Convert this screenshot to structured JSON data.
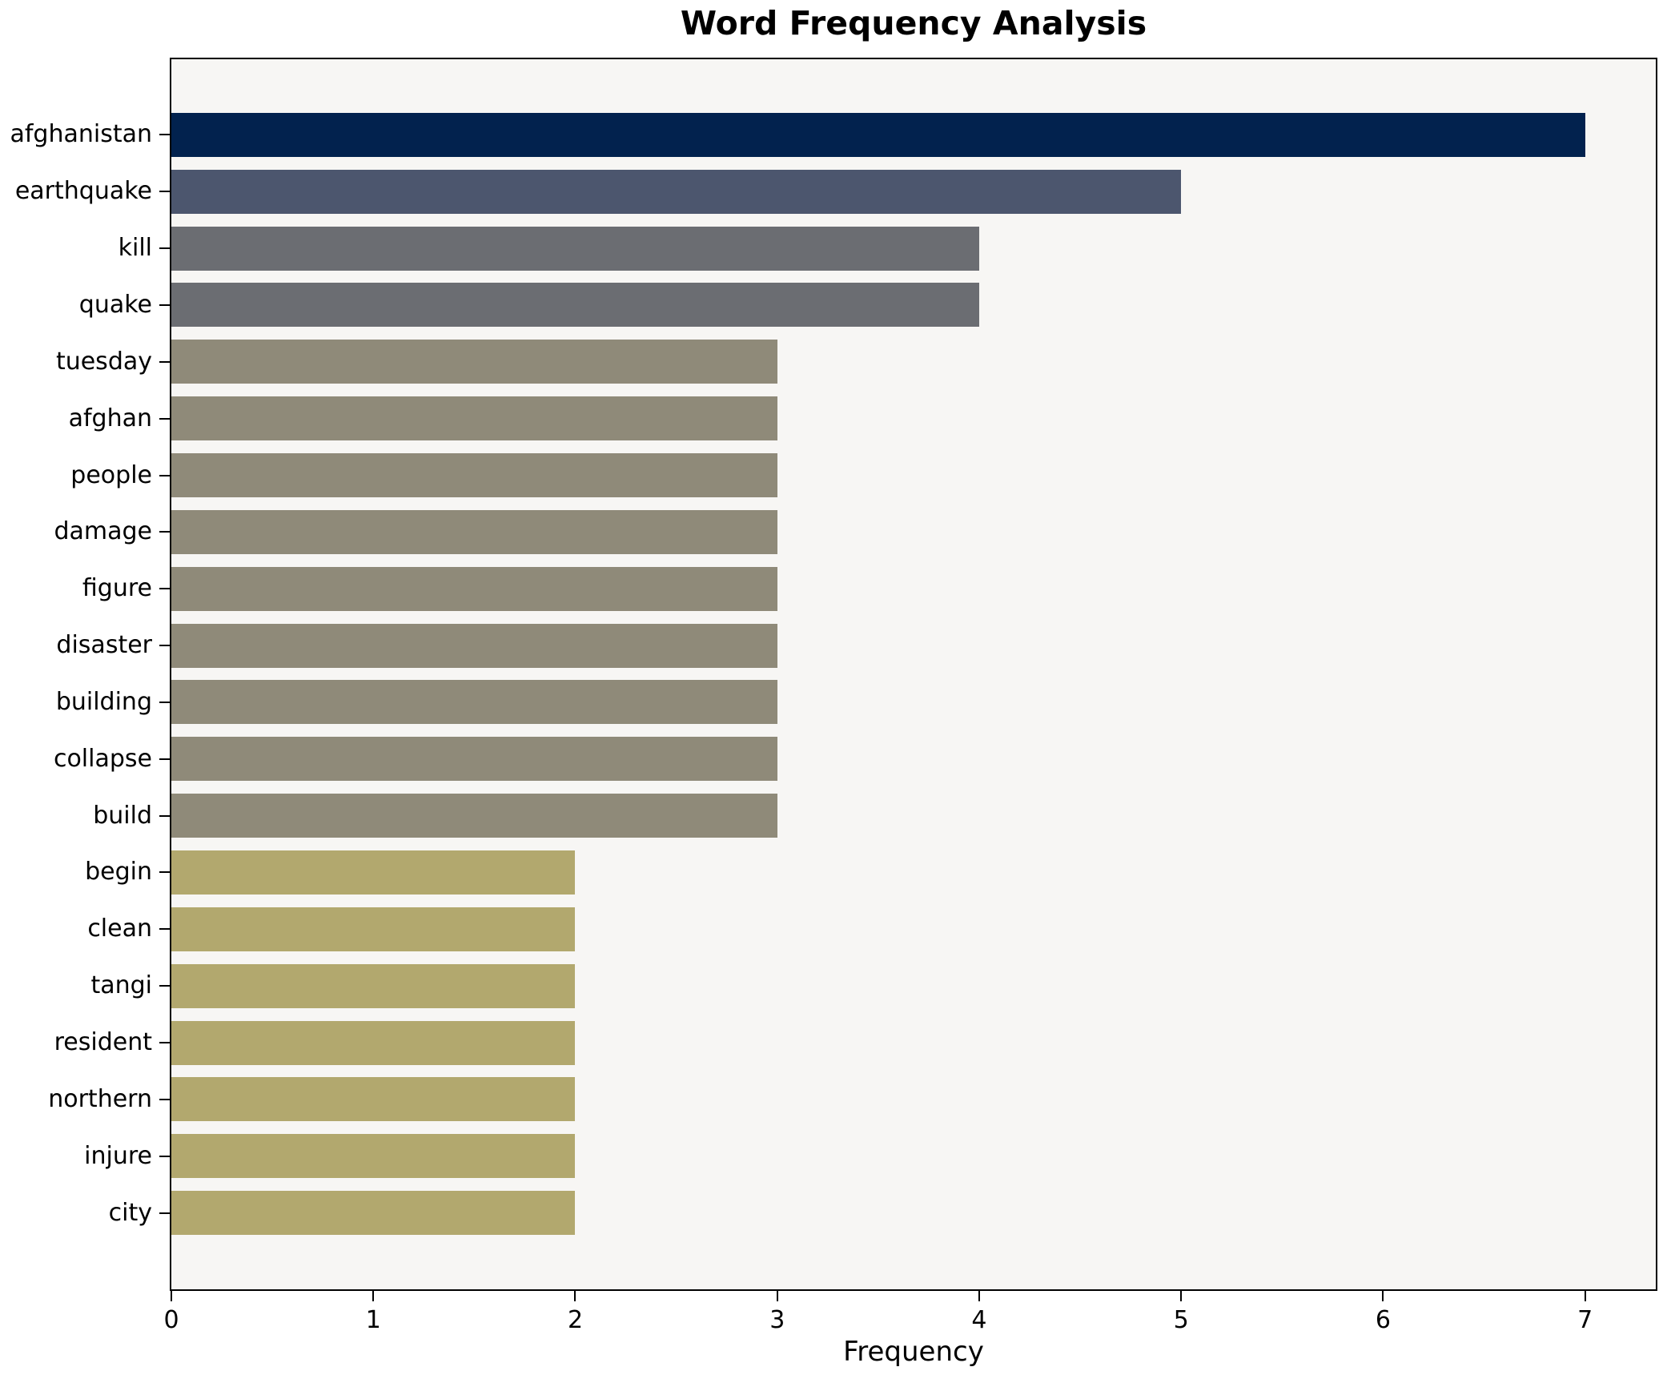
{
  "figure": {
    "background": "#ffffff"
  },
  "chart_data": {
    "type": "bar",
    "orientation": "horizontal",
    "title": "Word Frequency Analysis",
    "xlabel": "Frequency",
    "ylabel": "",
    "grid": false,
    "legend_position": "none",
    "xlim": [
      0,
      7.35
    ],
    "xticks": [
      0,
      1,
      2,
      3,
      4,
      5,
      6,
      7
    ],
    "categories": [
      "afghanistan",
      "earthquake",
      "kill",
      "quake",
      "tuesday",
      "afghan",
      "people",
      "damage",
      "figure",
      "disaster",
      "building",
      "collapse",
      "build",
      "begin",
      "clean",
      "tangi",
      "resident",
      "northern",
      "injure",
      "city"
    ],
    "values": [
      7,
      5,
      4,
      4,
      3,
      3,
      3,
      3,
      3,
      3,
      3,
      3,
      3,
      2,
      2,
      2,
      2,
      2,
      2,
      2
    ],
    "bar_colors": [
      "#02224e",
      "#4c566e",
      "#6b6d72",
      "#6b6d72",
      "#8f8a79",
      "#8f8a79",
      "#8f8a79",
      "#8f8a79",
      "#8f8a79",
      "#8f8a79",
      "#8f8a79",
      "#8f8a79",
      "#8f8a79",
      "#b2a86e",
      "#b2a86e",
      "#b2a86e",
      "#b2a86e",
      "#b2a86e",
      "#b2a86e",
      "#b2a86e"
    ],
    "color_by_value": {
      "7": "#02224e",
      "5": "#4c566e",
      "4": "#6b6d72",
      "3": "#8f8a79",
      "2": "#b2a86e"
    },
    "plot_background": "#f7f6f4",
    "spine_color": "#000000",
    "tick_color": "#000000",
    "text_color": "#000000"
  }
}
